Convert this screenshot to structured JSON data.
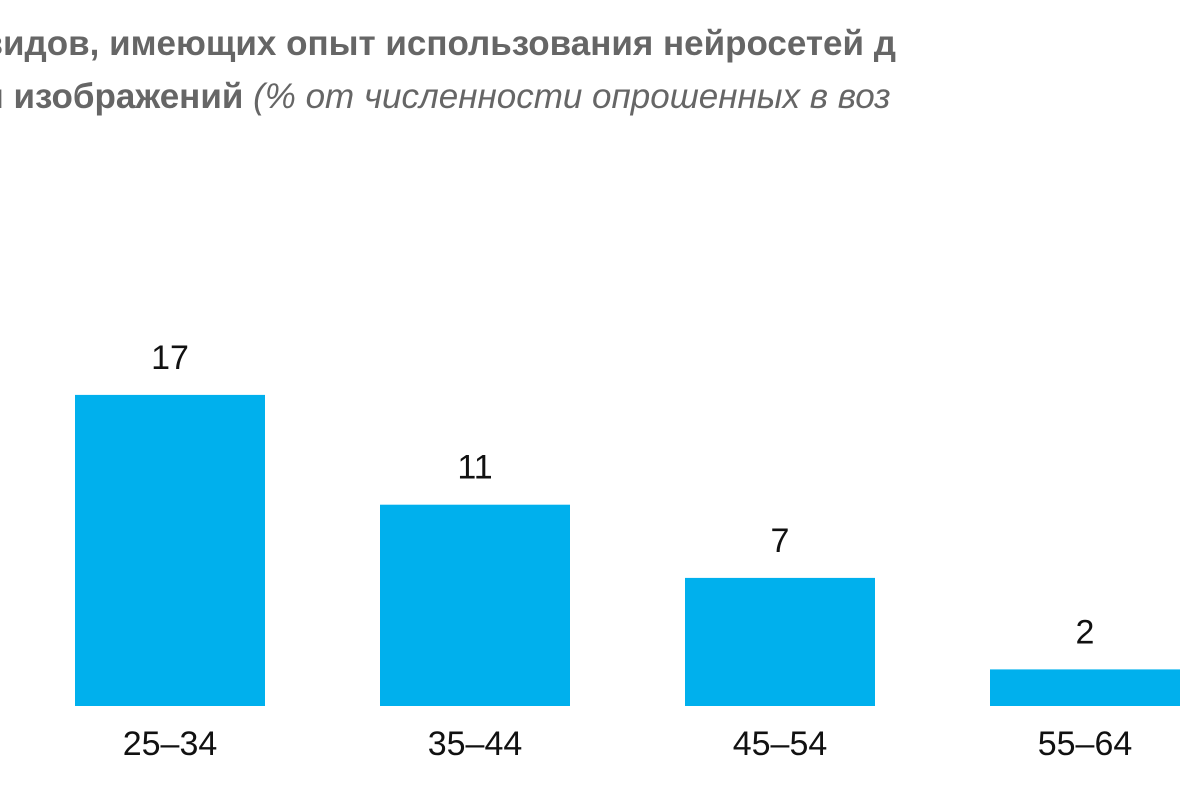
{
  "title": {
    "line1_bold": "ивидов, имеющих опыт использования нейросетей д",
    "line2_bold": "ли изображений",
    "line2_italic": "(% от численности опрошенных в воз"
  },
  "chart_data": {
    "type": "bar",
    "categories": [
      "25–34",
      "35–44",
      "45–54",
      "55–64"
    ],
    "values": [
      17,
      11,
      7,
      2
    ],
    "bar_color": "#00b0ed",
    "ylim": [
      0,
      17
    ],
    "grid": false,
    "legend": "none"
  }
}
